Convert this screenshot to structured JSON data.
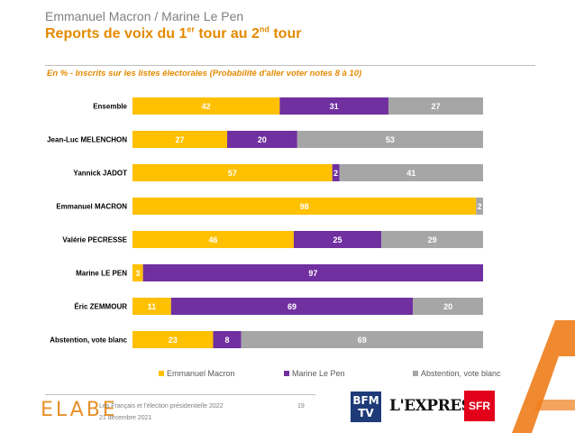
{
  "header": {
    "supertitle": "Emmanuel Macron / Marine Le Pen",
    "title_part1": "Reports de voix du 1",
    "title_sup1": "er",
    "title_part2": " tour au 2",
    "title_sup2": "nd",
    "title_part3": " tour",
    "subtitle": "En % - Inscrits sur les listes électorales (Probabilité d'aller voter notes 8 à 10)"
  },
  "chart_data": {
    "type": "bar",
    "orientation": "horizontal",
    "stacked": true,
    "normalized_to": 100,
    "categories": [
      "Ensemble",
      "Jean-Luc MELENCHON",
      "Yannick JADOT",
      "Emmanuel MACRON",
      "Valérie PECRESSE",
      "Marine LE PEN",
      "Éric ZEMMOUR",
      "Abstention, vote blanc"
    ],
    "series": [
      {
        "name": "Emmanuel Macron",
        "color": "#ffc000",
        "values": [
          42,
          27,
          57,
          98,
          46,
          3,
          11,
          23
        ]
      },
      {
        "name": "Marine Le Pen",
        "color": "#7030a0",
        "values": [
          31,
          20,
          2,
          0,
          25,
          97,
          69,
          8
        ]
      },
      {
        "name": "Abstention, vote blanc",
        "color": "#a6a6a6",
        "values": [
          27,
          53,
          41,
          2,
          29,
          0,
          20,
          69
        ]
      }
    ],
    "legend_position": "bottom",
    "grid": false
  },
  "footer": {
    "logo": "ELABE",
    "line1": "Les Français et l'élection présidentielle 2022",
    "line2": "21 décembre 2021",
    "page": "19",
    "partner1": "BFM TV",
    "partner2": "L'EXPRESS",
    "partner3": "SFR"
  }
}
